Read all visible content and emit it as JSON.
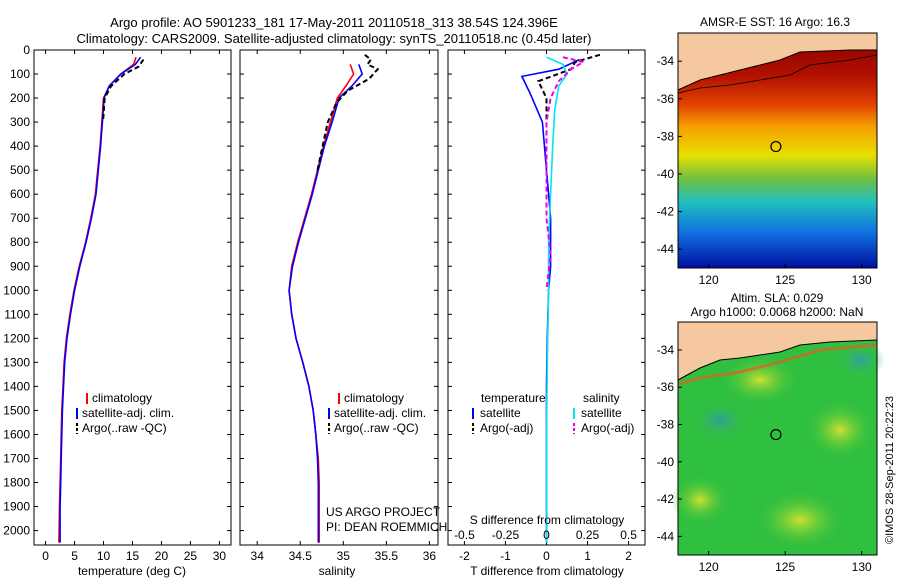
{
  "header": {
    "line1": "Argo profile: AO 5901233_181 17-May-2011 20110518_313 38.54S 124.396E",
    "line2": "Climatology: CARS2009. Satellite-adjusted climatology: synTS_20110518.nc (0.45d later)"
  },
  "project_note": {
    "line1": "US ARGO PROJECT",
    "line2": "PI: DEAN ROEMMICH"
  },
  "credit": "©IMOS 28-Sep-2011 20:22:23",
  "colors": {
    "climatology": "#ff0000",
    "satellite": "#0000ff",
    "argo": "#000000",
    "sal_satellite": "#00e5ee",
    "sal_argo": "#ee00ee"
  },
  "chart_data": [
    {
      "type": "line",
      "id": "temperature",
      "xlabel": "temperature (deg C)",
      "ylabel": "",
      "xlim": [
        -2,
        32
      ],
      "ylim": [
        2060,
        0
      ],
      "xticks": [
        0,
        5,
        10,
        15,
        20,
        25,
        30
      ],
      "yticks": [
        0,
        100,
        200,
        300,
        400,
        500,
        600,
        700,
        800,
        900,
        1000,
        1100,
        1200,
        1300,
        1400,
        1500,
        1600,
        1700,
        1800,
        1900,
        2000
      ],
      "legend": [
        "climatology",
        "satellite-adj. clim.",
        "Argo(..raw -QC)"
      ],
      "series": [
        {
          "name": "climatology",
          "style": "solid",
          "color": "#ff0000",
          "x": [
            15.6,
            15.2,
            13.0,
            11.0,
            10.0,
            9.7,
            9.4,
            9.0,
            8.6,
            7.8,
            6.9,
            5.8,
            4.9,
            4.2,
            3.6,
            3.2,
            3.0,
            2.8,
            2.7,
            2.6,
            2.5,
            2.4,
            2.3
          ],
          "y": [
            30,
            60,
            100,
            150,
            200,
            300,
            400,
            500,
            600,
            700,
            800,
            900,
            1000,
            1100,
            1200,
            1300,
            1400,
            1500,
            1600,
            1700,
            1800,
            1900,
            2050
          ]
        },
        {
          "name": "satellite-adj. clim.",
          "style": "solid",
          "color": "#0000ff",
          "x": [
            16.4,
            15.5,
            13.0,
            11.0,
            10.1,
            9.8,
            9.5,
            9.1,
            8.7,
            7.9,
            7.0,
            5.9,
            5.0,
            4.3,
            3.7,
            3.3,
            3.1,
            2.9,
            2.8,
            2.7,
            2.6,
            2.5,
            2.5
          ],
          "y": [
            30,
            60,
            100,
            150,
            200,
            300,
            400,
            500,
            600,
            700,
            800,
            900,
            1000,
            1100,
            1200,
            1300,
            1400,
            1500,
            1600,
            1700,
            1800,
            1900,
            2050
          ]
        },
        {
          "name": "Argo(..raw -QC)",
          "style": "dashed",
          "color": "#000000",
          "x": [
            16.9,
            16.0,
            13.6,
            11.3,
            10.2,
            9.9
          ],
          "y": [
            40,
            70,
            100,
            150,
            200,
            300
          ]
        }
      ]
    },
    {
      "type": "line",
      "id": "salinity",
      "xlabel": "salinity",
      "ylabel": "",
      "xlim": [
        33.8,
        36.1
      ],
      "ylim": [
        2060,
        0
      ],
      "xticks": [
        34,
        34.5,
        35,
        35.5,
        36
      ],
      "legend": [
        "climatology",
        "satellite-adj. clim.",
        "Argo(..raw -QC)"
      ],
      "series": [
        {
          "name": "climatology",
          "style": "solid",
          "color": "#ff0000",
          "x": [
            35.08,
            35.12,
            35.03,
            34.93,
            34.85,
            34.77,
            34.7,
            34.63,
            34.55,
            34.47,
            34.4,
            34.37,
            34.4,
            34.45,
            34.53,
            34.6,
            34.65,
            34.68,
            34.71,
            34.72,
            34.72,
            34.72
          ],
          "y": [
            60,
            100,
            150,
            200,
            300,
            400,
            500,
            600,
            700,
            800,
            900,
            1000,
            1100,
            1200,
            1300,
            1400,
            1500,
            1600,
            1700,
            1800,
            1900,
            2050
          ]
        },
        {
          "name": "satellite-adj. clim.",
          "style": "solid",
          "color": "#0000ff",
          "x": [
            35.18,
            35.22,
            35.1,
            34.95,
            34.87,
            34.78,
            34.71,
            34.64,
            34.56,
            34.48,
            34.41,
            34.37,
            34.4,
            34.45,
            34.53,
            34.6,
            34.65,
            34.68,
            34.7,
            34.71,
            34.71,
            34.71
          ],
          "y": [
            60,
            100,
            150,
            200,
            300,
            400,
            500,
            600,
            700,
            800,
            900,
            1000,
            1100,
            1200,
            1300,
            1400,
            1500,
            1600,
            1700,
            1800,
            1900,
            2050
          ]
        },
        {
          "name": "Argo(..raw -QC)",
          "style": "dashed",
          "color": "#000000",
          "x": [
            35.25,
            35.32,
            35.28,
            35.4,
            35.3,
            35.05,
            34.92,
            34.82,
            34.76,
            34.7
          ],
          "y": [
            20,
            40,
            60,
            80,
            120,
            170,
            220,
            300,
            400,
            500
          ]
        }
      ]
    },
    {
      "type": "line",
      "id": "differences",
      "xlabel": "T difference from climatology",
      "xlabel2": "S difference from climatology",
      "ylabel": "",
      "xlim": [
        -2.4,
        2.4
      ],
      "ylim": [
        2060,
        0
      ],
      "xticks": [
        -2,
        -1,
        0,
        1,
        2
      ],
      "xticks2": [
        -0.5,
        -0.25,
        0,
        0.25,
        0.5
      ],
      "legend_groups": {
        "temperature": {
          "title": "temperature",
          "items": [
            "satellite",
            "Argo(-adj)"
          ]
        },
        "salinity": {
          "title": "salinity",
          "items": [
            "satellite",
            "Argo(-adj)"
          ]
        }
      },
      "series": [
        {
          "name": "temperature satellite",
          "style": "solid",
          "color": "#0000ff",
          "x": [
            0.8,
            0.3,
            -0.6,
            -0.4,
            -0.1,
            0.0,
            0.05,
            0.1,
            0.1,
            0.1,
            0.05,
            0.02,
            0.0,
            0.0,
            0.0,
            0.0,
            0.0,
            0.0
          ],
          "y": [
            40,
            80,
            110,
            180,
            300,
            500,
            600,
            700,
            800,
            900,
            1000,
            1200,
            1400,
            1600,
            1700,
            1800,
            1900,
            2050
          ]
        },
        {
          "name": "temperature Argo(-adj)",
          "style": "dashed",
          "color": "#000000",
          "x": [
            1.3,
            0.7,
            0.6,
            -0.2,
            0.0,
            0.0,
            0.0
          ],
          "y": [
            20,
            50,
            80,
            130,
            200,
            300,
            500
          ]
        },
        {
          "name": "salinity satellite",
          "style": "solid",
          "color": "#00e5ee",
          "x": [
            0.0,
            0.4,
            0.5,
            0.3,
            0.2,
            0.15,
            0.1,
            0.05,
            0.05,
            0.02,
            0.0,
            0.0,
            0.0
          ],
          "y": [
            30,
            60,
            100,
            150,
            250,
            400,
            600,
            800,
            1000,
            1300,
            1600,
            1900,
            2050
          ]
        },
        {
          "name": "salinity Argo(-adj)",
          "style": "dashed",
          "color": "#ee00ee",
          "x": [
            0.4,
            0.9,
            0.6,
            0.3,
            0.1,
            0.0,
            0.0,
            0.0,
            0.1,
            0.0
          ],
          "y": [
            30,
            50,
            80,
            130,
            200,
            300,
            500,
            700,
            850,
            1000
          ]
        }
      ]
    },
    {
      "type": "heatmap",
      "id": "sst-map",
      "title": "AMSR-E SST: 16 Argo: 16.3",
      "xlim": [
        118,
        131
      ],
      "ylim": [
        -45,
        -32.5
      ],
      "xticks": [
        120,
        125,
        130
      ],
      "yticks": [
        -34,
        -36,
        -38,
        -40,
        -42,
        -44
      ],
      "marker": {
        "lon": 124.396,
        "lat": -38.54
      }
    },
    {
      "type": "heatmap",
      "id": "sla-map",
      "title": "Altim. SLA: 0.029",
      "subtitle": "Argo h1000: 0.0068 h2000: NaN",
      "xlim": [
        118,
        131
      ],
      "ylim": [
        -45,
        -32.5
      ],
      "xticks": [
        120,
        125,
        130
      ],
      "yticks": [
        -34,
        -36,
        -38,
        -40,
        -42,
        -44
      ],
      "marker": {
        "lon": 124.396,
        "lat": -38.54
      }
    }
  ]
}
